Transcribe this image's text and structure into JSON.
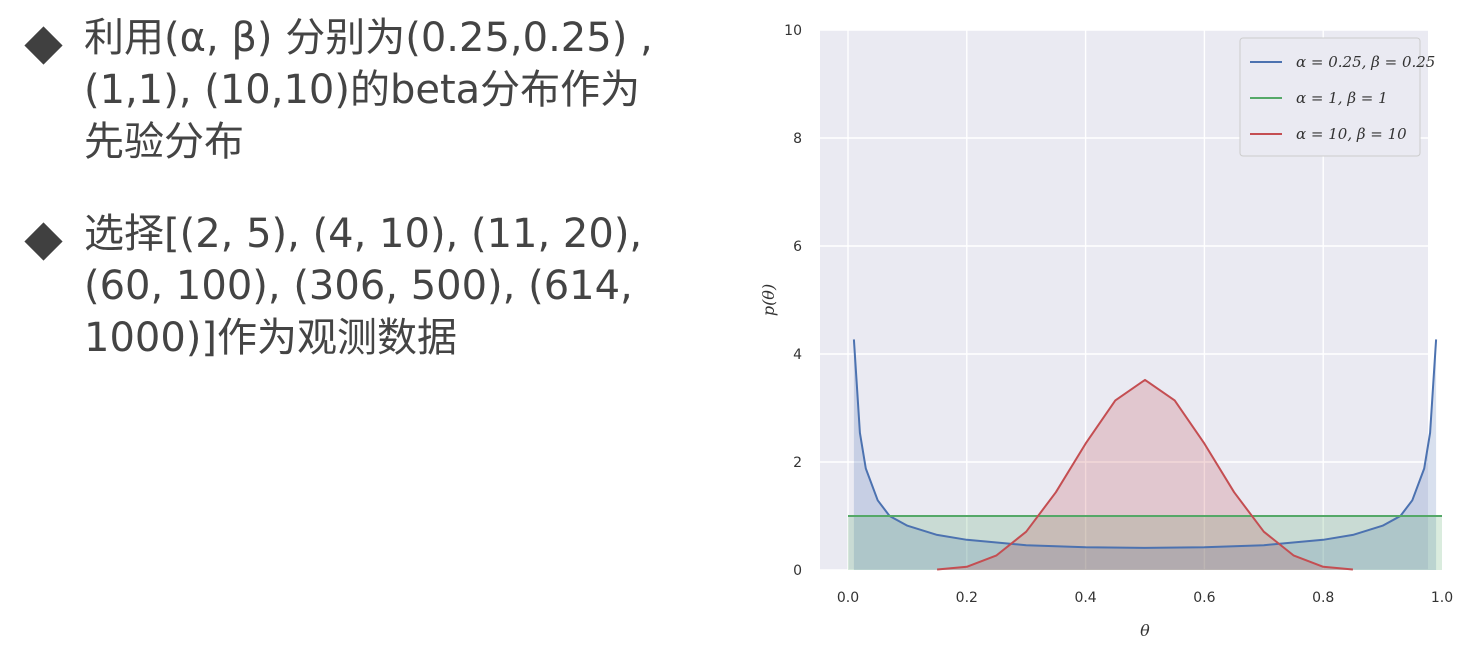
{
  "bullets": [
    {
      "icon": "diamond-icon",
      "lines": [
        "利用(α, β) 分别为(0.25,0.25) ,",
        "(1,1), (10,10)的beta分布作为",
        "先验分布"
      ]
    },
    {
      "icon": "diamond-icon",
      "lines": [
        "选择[(2, 5), (4, 10), (11, 20),",
        "(60, 100), (306, 500), (614,",
        "1000)]作为观测数据"
      ]
    }
  ],
  "chart_data": {
    "type": "area",
    "xlabel": "θ",
    "ylabel": "p(θ)",
    "xlim": [
      0.0,
      1.0
    ],
    "ylim": [
      0,
      10
    ],
    "x_ticks": [
      "0.0",
      "0.2",
      "0.4",
      "0.6",
      "0.8",
      "1.0"
    ],
    "y_ticks": [
      "0",
      "2",
      "4",
      "6",
      "8",
      "10"
    ],
    "grid": true,
    "legend_position": "top-right",
    "background": "#eaeaf2",
    "series": [
      {
        "name": "α = 0.25, β = 0.25",
        "color": "#4c72b0",
        "x": [
          0.01,
          0.02,
          0.03,
          0.05,
          0.07,
          0.1,
          0.15,
          0.2,
          0.3,
          0.4,
          0.5,
          0.6,
          0.7,
          0.8,
          0.85,
          0.9,
          0.93,
          0.95,
          0.97,
          0.98,
          0.99
        ],
        "y": [
          4.27,
          2.54,
          1.88,
          1.29,
          1.0,
          0.82,
          0.65,
          0.56,
          0.46,
          0.42,
          0.41,
          0.42,
          0.46,
          0.56,
          0.65,
          0.82,
          1.0,
          1.29,
          1.88,
          2.54,
          4.27
        ]
      },
      {
        "name": "α = 1, β = 1",
        "color": "#55a868",
        "x": [
          0.0,
          1.0
        ],
        "y": [
          1.0,
          1.0
        ]
      },
      {
        "name": "α = 10, β = 10",
        "color": "#c44e52",
        "x": [
          0.15,
          0.2,
          0.25,
          0.3,
          0.35,
          0.4,
          0.45,
          0.5,
          0.55,
          0.6,
          0.65,
          0.7,
          0.75,
          0.8,
          0.85
        ],
        "y": [
          0.01,
          0.06,
          0.27,
          0.71,
          1.44,
          2.34,
          3.14,
          3.52,
          3.14,
          2.34,
          1.44,
          0.71,
          0.27,
          0.06,
          0.01
        ]
      }
    ]
  }
}
